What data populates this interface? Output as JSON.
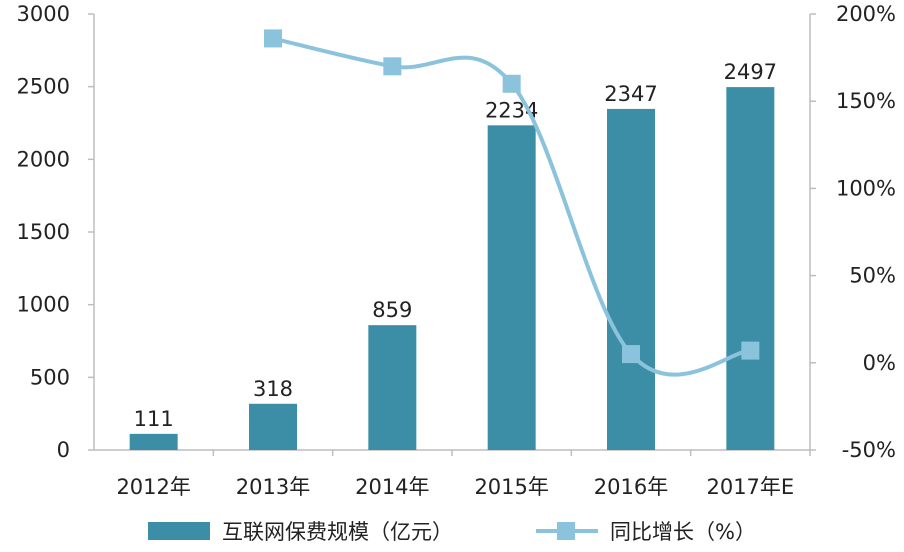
{
  "chart_data": {
    "type": "bar",
    "categories": [
      "2012年",
      "2013年",
      "2014年",
      "2015年",
      "2016年",
      "2017年E"
    ],
    "series": [
      {
        "name": "互联网保费规模（亿元）",
        "type": "bar",
        "axis": "left",
        "values": [
          111,
          318,
          859,
          2234,
          2347,
          2497
        ],
        "color": "#3b8ea5"
      },
      {
        "name": "同比增长（%）",
        "type": "line",
        "axis": "right",
        "values": [
          null,
          186,
          170,
          160,
          5,
          7
        ],
        "color": "#8cc3dc"
      }
    ],
    "yleft": {
      "min": 0,
      "max": 3000,
      "ticks": [
        "0",
        "500",
        "1000",
        "1500",
        "2000",
        "2500",
        "3000"
      ]
    },
    "yright": {
      "min": -50,
      "max": 200,
      "ticks": [
        "-50%",
        "0%",
        "50%",
        "100%",
        "150%",
        "200%"
      ]
    },
    "data_labels": [
      "111",
      "318",
      "859",
      "2234",
      "2347",
      "2497"
    ],
    "legend_position": "bottom"
  }
}
